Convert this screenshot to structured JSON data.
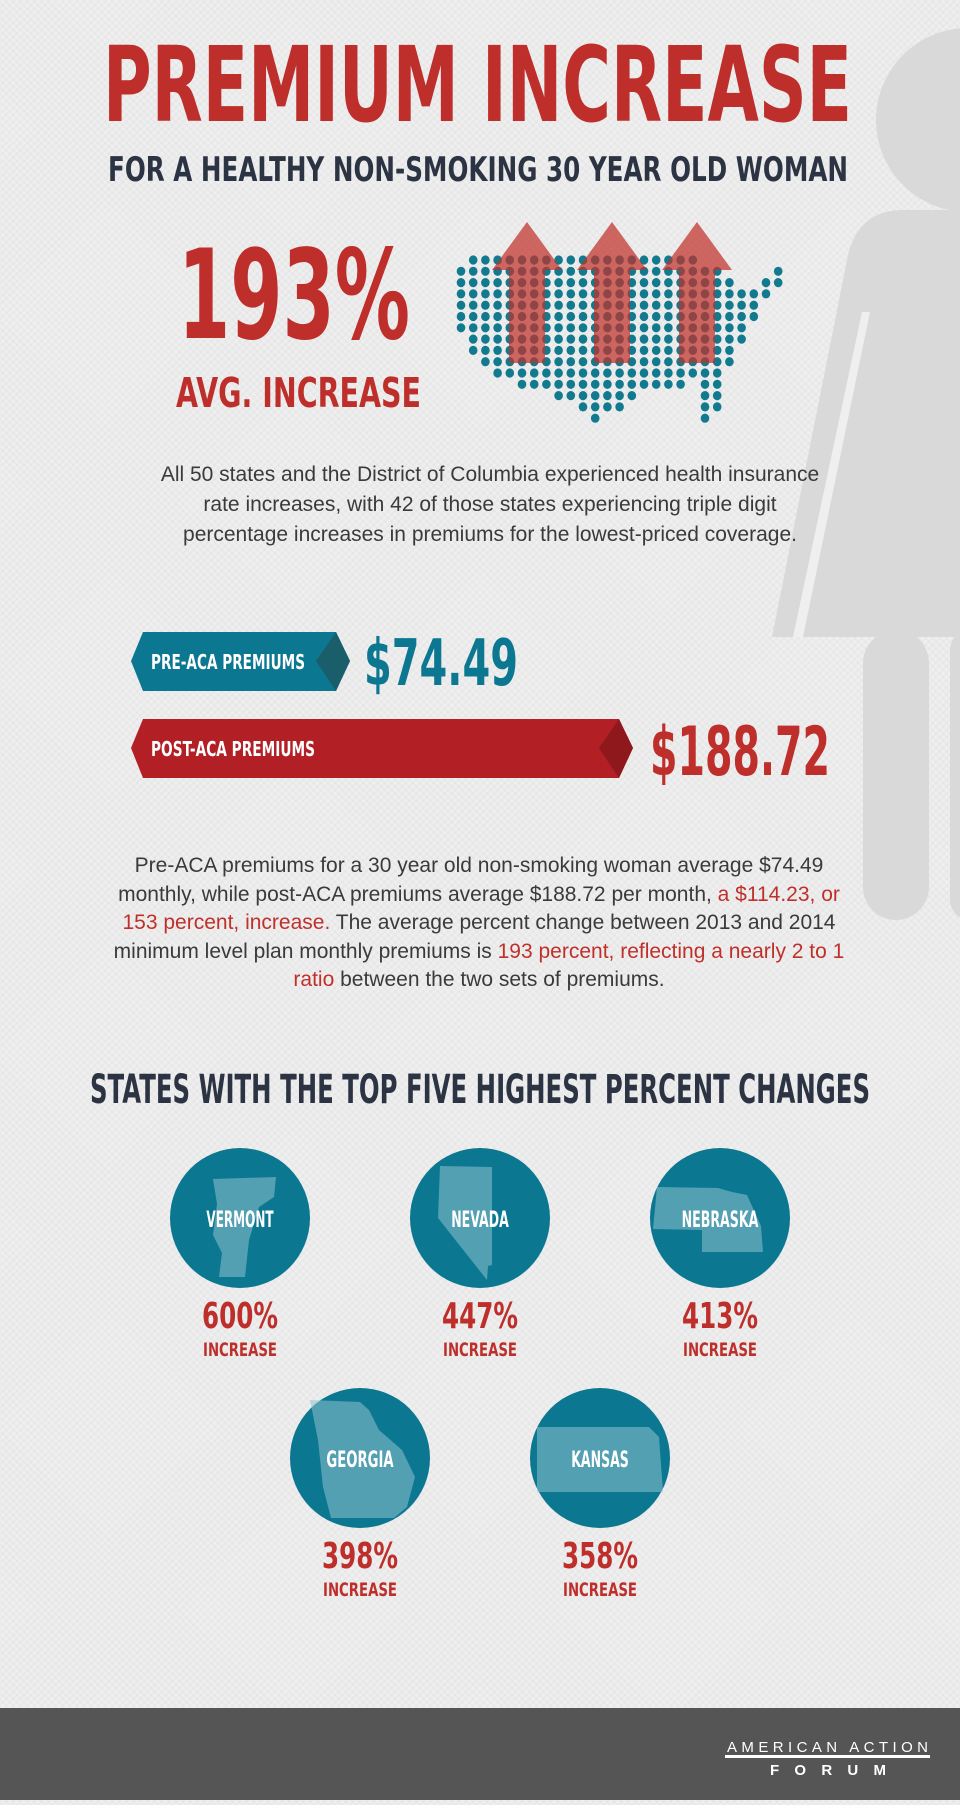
{
  "title": "PREMIUM INCREASE",
  "subtitle": "FOR A HEALTHY NON-SMOKING 30 YEAR OLD WOMAN",
  "avg": {
    "value": "193%",
    "label": "AVG. INCREASE"
  },
  "intro": {
    "text": "All 50 states and the District of Columbia experienced health insurance rate increases, with 42 of those states experiencing triple digit percentage increases in premiums for the lowest-priced coverage."
  },
  "premiums": {
    "pre": {
      "label": "PRE-ACA PREMIUMS",
      "value": "$74.49"
    },
    "post": {
      "label": "POST-ACA PREMIUMS",
      "value": "$188.72"
    }
  },
  "summary": {
    "part1": "Pre-ACA premiums for a 30 year old non-smoking woman average $74.49 monthly, while post-ACA premiums average $188.72 per month, ",
    "highlight1": "a $114.23, or 153 percent, increase.",
    "part2": " The average percent change between 2013 and 2014 minimum level plan monthly premiums is ",
    "highlight2": "193 percent, reflecting a nearly 2 to 1 ratio",
    "part3": " between the two sets of premiums."
  },
  "states_heading": "STATES WITH THE TOP FIVE HIGHEST PERCENT CHANGES",
  "states": [
    {
      "name": "VERMONT",
      "percent": "600%",
      "label": "INCREASE"
    },
    {
      "name": "NEVADA",
      "percent": "447%",
      "label": "INCREASE"
    },
    {
      "name": "NEBRASKA",
      "percent": "413%",
      "label": "INCREASE"
    },
    {
      "name": "GEORGIA",
      "percent": "398%",
      "label": "INCREASE"
    },
    {
      "name": "KANSAS",
      "percent": "358%",
      "label": "INCREASE"
    }
  ],
  "footer": {
    "logo_line1": "AMERICAN ACTION",
    "logo_line2": "FORUM"
  },
  "colors": {
    "red": "#c0302a",
    "teal": "#0b7791",
    "navy": "#2c3444",
    "footer": "#555555",
    "silhouette": "#d8d8d8"
  },
  "icons": [
    "woman-silhouette-icon",
    "us-dot-map-icon",
    "up-arrow-icon",
    "state-map-icon"
  ]
}
